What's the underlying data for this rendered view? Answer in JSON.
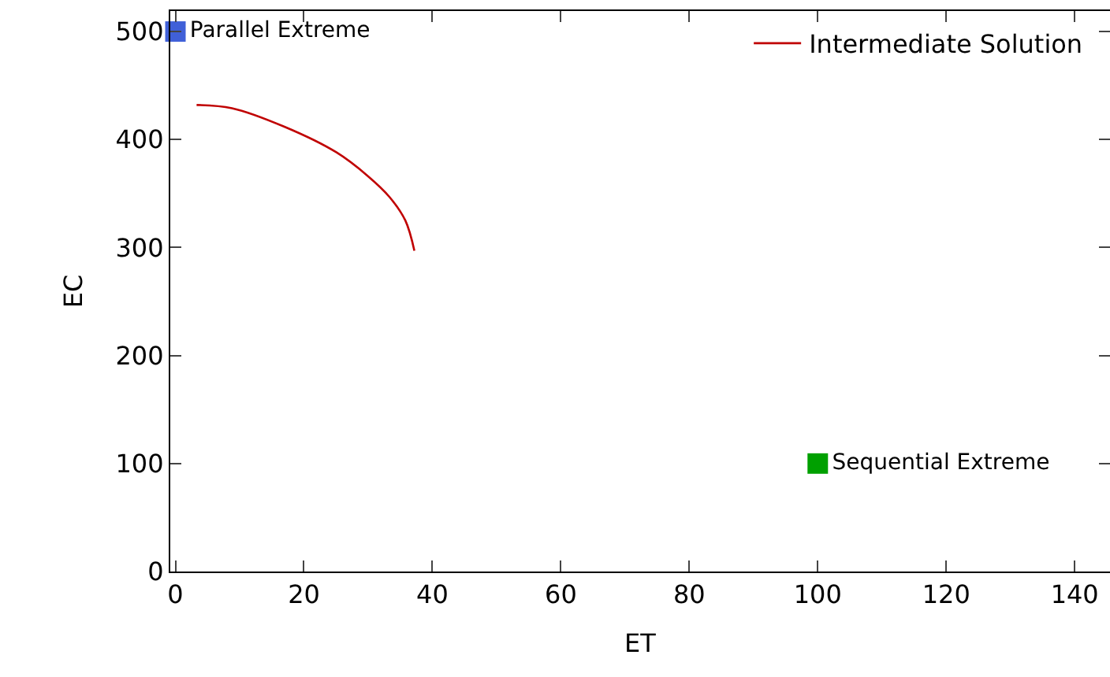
{
  "chart_data": {
    "type": "scatter",
    "xlabel": "ET",
    "ylabel": "EC",
    "xlim": [
      -0.8,
      145.5
    ],
    "ylim": [
      0,
      519
    ],
    "xticks": [
      0,
      20,
      40,
      60,
      80,
      100,
      120,
      140
    ],
    "yticks": [
      0,
      100,
      200,
      300,
      400,
      500
    ],
    "grid": false,
    "legend": "top right",
    "marker": "square",
    "series": [
      {
        "name": "Parallel Extreme",
        "color": "#4060d8",
        "x": [
          0
        ],
        "values": [
          500
        ]
      },
      {
        "name": "Sequential Extreme",
        "color": "#00a000",
        "x": [
          100
        ],
        "values": [
          100
        ]
      },
      {
        "name": "Intermediate Solution",
        "type": "line",
        "color": "#c00000",
        "marker": "none",
        "line_style": "solid",
        "x": [
          3.3,
          8.8,
          16.9,
          25.1,
          30,
          33.3,
          35.8,
          37.2
        ],
        "values": [
          432,
          429,
          412,
          388,
          366,
          347,
          325,
          297
        ]
      }
    ]
  }
}
